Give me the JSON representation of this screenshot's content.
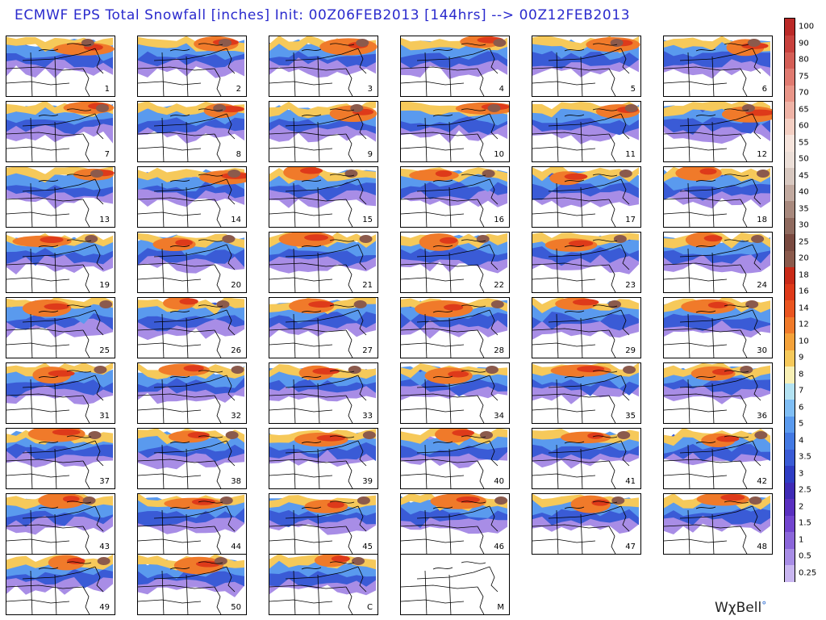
{
  "title": "ECMWF EPS Total Snowfall [inches] Init: 00Z06FEB2013 [144hrs] --> 00Z12FEB2013",
  "panels": [
    "1",
    "2",
    "3",
    "4",
    "5",
    "6",
    "7",
    "8",
    "9",
    "10",
    "11",
    "12",
    "13",
    "14",
    "15",
    "16",
    "17",
    "18",
    "19",
    "20",
    "21",
    "22",
    "23",
    "24",
    "25",
    "26",
    "27",
    "28",
    "29",
    "30",
    "31",
    "32",
    "33",
    "34",
    "35",
    "36",
    "37",
    "38",
    "39",
    "40",
    "41",
    "42",
    "43",
    "44",
    "45",
    "46",
    "47",
    "48",
    "49",
    "50",
    "C",
    "M"
  ],
  "colorbar": {
    "levels": [
      "0.25",
      "0.5",
      "1",
      "1.5",
      "2",
      "2.5",
      "3",
      "3.5",
      "4",
      "5",
      "6",
      "7",
      "8",
      "9",
      "10",
      "12",
      "14",
      "16",
      "18",
      "20",
      "25",
      "30",
      "35",
      "40",
      "45",
      "50",
      "55",
      "60",
      "65",
      "70",
      "75",
      "80",
      "90",
      "100"
    ],
    "colors": [
      "#c9b6f0",
      "#a88de6",
      "#8b66da",
      "#7245cf",
      "#5a30c0",
      "#3f2bb6",
      "#2f3dc4",
      "#3a5bd6",
      "#4379e3",
      "#5a9aee",
      "#7fbef5",
      "#b3e2f2",
      "#f8f0b5",
      "#f6c95a",
      "#f4a23a",
      "#f07a2a",
      "#ea5520",
      "#de3a1a",
      "#c92a18",
      "#8b5a4c",
      "#7a4a40",
      "#8f6a5e",
      "#a8897d",
      "#c2aaa0",
      "#d8c8c0",
      "#ecdfd8",
      "#f6e4dc",
      "#f4cfc3",
      "#efb3a6",
      "#e99588",
      "#e07a70",
      "#d45e56",
      "#c8413d",
      "#bb2a28"
    ]
  },
  "brand": "WχBell"
}
